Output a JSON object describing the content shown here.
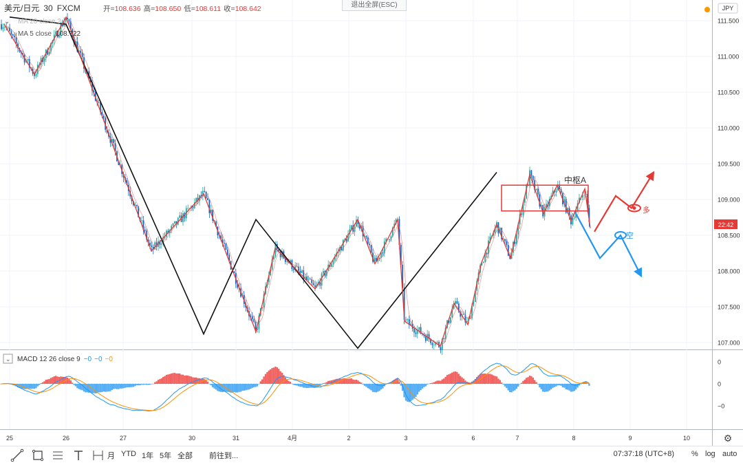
{
  "header": {
    "symbol": "美元/日元",
    "interval": "30",
    "exchange": "FXCM",
    "open_label": "开=",
    "open": "108.636",
    "high_label": "高=",
    "high": "108.650",
    "low_label": "低=",
    "low": "108.611",
    "close_label": "收=",
    "close": "108.642"
  },
  "exit_fullscreen": "退出全屏(ESC)",
  "indicators": {
    "ma20": "MA 20 close 2",
    "ma5_label": "MA 5 close",
    "ma5_value": "108.722",
    "macd": "MACD 12 26 close 9",
    "macd_v1": "−0",
    "macd_v2": "−0",
    "macd_v3": "−0"
  },
  "currency_badge": "JPY",
  "price_tag": "22:42",
  "annotations": {
    "zhongshu": "中枢A",
    "long": "多",
    "short": "空"
  },
  "chart_data": {
    "type": "candlestick",
    "symbol": "美元/日元",
    "y_axis_ticks": [
      "111.500",
      "111.000",
      "110.500",
      "110.000",
      "109.500",
      "109.000",
      "108.500",
      "108.000",
      "107.500",
      "107.000"
    ],
    "ylim": [
      106.9,
      111.55
    ],
    "x_axis_ticks": [
      "25",
      "26",
      "27",
      "30",
      "31",
      "4月",
      "2",
      "3",
      "6",
      "7",
      "8",
      "9",
      "10"
    ],
    "macd_axis_ticks": [
      "0",
      "0",
      "−0"
    ],
    "zigzag_black": [
      111.55,
      111.45,
      107.12,
      108.72,
      106.92,
      109.38
    ],
    "zigzag_red": [
      111.45,
      110.75,
      111.55,
      108.28,
      109.08,
      107.15,
      108.32,
      107.75,
      108.72,
      108.1,
      108.72,
      107.3,
      106.95,
      107.55,
      107.25,
      108.12,
      108.65,
      108.18,
      109.35,
      108.8,
      109.2,
      108.7,
      109.15,
      108.6
    ],
    "zhongshu_box": {
      "top": 109.2,
      "bottom": 108.84
    },
    "projection_long": [
      108.55,
      109.05,
      108.88,
      109.38
    ],
    "projection_short": [
      108.82,
      108.18,
      108.5,
      107.93
    ]
  },
  "toolbar": {
    "ytd": "YTD",
    "y1": "1年",
    "y5": "5年",
    "all": "全部",
    "goto": "前往到...",
    "clock": "07:37:18 (UTC+8)",
    "percent": "%",
    "log": "log",
    "auto": "auto",
    "month_frag": "月"
  }
}
